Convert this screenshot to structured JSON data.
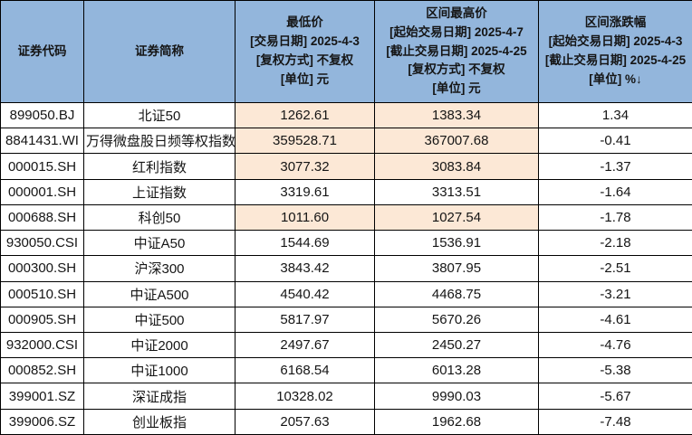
{
  "colors": {
    "header_bg": "#93B6DC",
    "highlight_bg": "#FCE8D6",
    "border": "#000000",
    "text": "#151515",
    "row_bg": "#FFFFFF"
  },
  "table": {
    "columns": [
      {
        "key": "code",
        "header": "证券代码"
      },
      {
        "key": "name",
        "header": "证券简称"
      },
      {
        "key": "low",
        "header": "最低价\n[交易日期] 2025-4-3\n[复权方式] 不复权\n[单位] 元"
      },
      {
        "key": "high",
        "header": "区间最高价\n[起始交易日期] 2025-4-7\n[截止交易日期] 2025-4-25\n[复权方式] 不复权\n[单位] 元"
      },
      {
        "key": "change",
        "header": "区间涨跌幅\n[起始交易日期] 2025-4-3\n[截止交易日期] 2025-4-25\n[单位] %↓"
      }
    ],
    "sort_indicator": "↓",
    "rows": [
      {
        "code": "899050.BJ",
        "name": "北证50",
        "low": "1262.61",
        "high": "1383.34",
        "change": "1.34",
        "highlight": true
      },
      {
        "code": "8841431.WI",
        "name": "万得微盘股日频等权指数",
        "low": "359528.71",
        "high": "367007.68",
        "change": "-0.41",
        "highlight": true
      },
      {
        "code": "000015.SH",
        "name": "红利指数",
        "low": "3077.32",
        "high": "3083.84",
        "change": "-1.37",
        "highlight": true
      },
      {
        "code": "000001.SH",
        "name": "上证指数",
        "low": "3319.61",
        "high": "3313.51",
        "change": "-1.64",
        "highlight": false
      },
      {
        "code": "000688.SH",
        "name": "科创50",
        "low": "1011.60",
        "high": "1027.54",
        "change": "-1.78",
        "highlight": true
      },
      {
        "code": "930050.CSI",
        "name": "中证A50",
        "low": "1544.69",
        "high": "1536.91",
        "change": "-2.18",
        "highlight": false
      },
      {
        "code": "000300.SH",
        "name": "沪深300",
        "low": "3843.42",
        "high": "3807.95",
        "change": "-2.51",
        "highlight": false
      },
      {
        "code": "000510.SH",
        "name": "中证A500",
        "low": "4540.42",
        "high": "4468.75",
        "change": "-3.21",
        "highlight": false
      },
      {
        "code": "000905.SH",
        "name": "中证500",
        "low": "5817.97",
        "high": "5670.26",
        "change": "-4.61",
        "highlight": false
      },
      {
        "code": "932000.CSI",
        "name": "中证2000",
        "low": "2497.67",
        "high": "2450.27",
        "change": "-4.76",
        "highlight": false
      },
      {
        "code": "000852.SH",
        "name": "中证1000",
        "low": "6168.54",
        "high": "6013.28",
        "change": "-5.38",
        "highlight": false
      },
      {
        "code": "399001.SZ",
        "name": "深证成指",
        "low": "10328.02",
        "high": "9990.03",
        "change": "-5.67",
        "highlight": false
      },
      {
        "code": "399006.SZ",
        "name": "创业板指",
        "low": "2057.63",
        "high": "1962.68",
        "change": "-7.48",
        "highlight": false
      }
    ]
  }
}
